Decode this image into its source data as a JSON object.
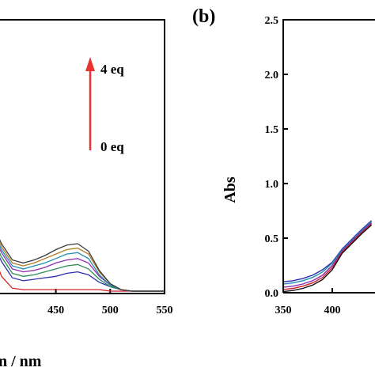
{
  "panel_a": {
    "xlabel_fragment": "n / nm",
    "annotation_top": "4 eq",
    "annotation_bottom": "0 eq",
    "arrow_color": "#e8342f"
  },
  "panel_b": {
    "tag": "(b)",
    "ylabel": "Abs"
  },
  "chart_data": [
    {
      "type": "line",
      "title": "",
      "xlabel": "λ / nm",
      "ylabel": "",
      "xlim": [
        395,
        550
      ],
      "ylim": [
        0,
        2.5
      ],
      "x_ticks": [
        450,
        500,
        550
      ],
      "x_tick_labels": [
        "450",
        "500",
        "550"
      ],
      "legend": "none",
      "annotation": {
        "from": "0 eq",
        "to": "4 eq",
        "direction": "up"
      },
      "x": [
        395,
        400,
        410,
        420,
        430,
        440,
        450,
        460,
        470,
        480,
        490,
        500,
        510,
        520,
        530,
        540,
        550
      ],
      "series": [
        {
          "color": "#d6202a",
          "values": [
            0.2,
            0.1,
            0.02,
            0.01,
            0.01,
            0.01,
            0.01,
            0.01,
            0.01,
            0.01,
            0.01,
            0.0,
            0.0,
            0.0,
            0.0,
            0.0,
            0.0
          ]
        },
        {
          "color": "#2a2fb0",
          "values": [
            0.28,
            0.2,
            0.09,
            0.07,
            0.08,
            0.09,
            0.1,
            0.12,
            0.13,
            0.11,
            0.06,
            0.03,
            0.01,
            0.0,
            0.0,
            0.0,
            0.0
          ]
        },
        {
          "color": "#2e8b57",
          "values": [
            0.31,
            0.23,
            0.12,
            0.1,
            0.11,
            0.13,
            0.15,
            0.17,
            0.18,
            0.15,
            0.08,
            0.03,
            0.01,
            0.0,
            0.0,
            0.0,
            0.0
          ]
        },
        {
          "color": "#8b2fb0",
          "values": [
            0.34,
            0.26,
            0.15,
            0.13,
            0.14,
            0.16,
            0.19,
            0.21,
            0.22,
            0.19,
            0.1,
            0.04,
            0.01,
            0.0,
            0.0,
            0.0,
            0.0
          ]
        },
        {
          "color": "#1f8fb0",
          "values": [
            0.36,
            0.28,
            0.17,
            0.15,
            0.17,
            0.19,
            0.22,
            0.25,
            0.26,
            0.22,
            0.11,
            0.04,
            0.01,
            0.0,
            0.0,
            0.0,
            0.0
          ]
        },
        {
          "color": "#b07d1f",
          "values": [
            0.38,
            0.3,
            0.19,
            0.17,
            0.19,
            0.22,
            0.25,
            0.28,
            0.29,
            0.25,
            0.13,
            0.05,
            0.01,
            0.0,
            0.0,
            0.0,
            0.0
          ]
        },
        {
          "color": "#3a3a3a",
          "values": [
            0.4,
            0.32,
            0.21,
            0.19,
            0.21,
            0.24,
            0.28,
            0.31,
            0.32,
            0.27,
            0.14,
            0.05,
            0.01,
            0.0,
            0.0,
            0.0,
            0.0
          ]
        }
      ]
    },
    {
      "type": "line",
      "title": "",
      "xlabel": "",
      "ylabel": "Abs",
      "xlim": [
        350,
        440
      ],
      "ylim": [
        0.0,
        2.5
      ],
      "x_ticks": [
        350,
        400
      ],
      "x_tick_labels": [
        "350",
        "400"
      ],
      "y_ticks": [
        0.0,
        0.5,
        1.0,
        1.5,
        2.0,
        2.5
      ],
      "y_tick_labels": [
        "0.0",
        "0.5",
        "1.0",
        "1.5",
        "2.0",
        "2.5"
      ],
      "legend": "none",
      "x": [
        350,
        360,
        370,
        380,
        390,
        400,
        410,
        420,
        430,
        440
      ],
      "series": [
        {
          "color": "#2a2fb0",
          "values": [
            0.1,
            0.11,
            0.13,
            0.16,
            0.21,
            0.28,
            0.4,
            0.49,
            0.58,
            0.66
          ]
        },
        {
          "color": "#1f8fb0",
          "values": [
            0.08,
            0.09,
            0.11,
            0.14,
            0.19,
            0.27,
            0.39,
            0.48,
            0.57,
            0.65
          ]
        },
        {
          "color": "#8b2fb0",
          "values": [
            0.05,
            0.06,
            0.08,
            0.11,
            0.16,
            0.25,
            0.38,
            0.47,
            0.56,
            0.64
          ]
        },
        {
          "color": "#d6202a",
          "values": [
            0.03,
            0.04,
            0.06,
            0.09,
            0.14,
            0.23,
            0.37,
            0.46,
            0.55,
            0.63
          ]
        },
        {
          "color": "#111111",
          "values": [
            0.01,
            0.02,
            0.04,
            0.07,
            0.12,
            0.21,
            0.36,
            0.45,
            0.54,
            0.62
          ]
        }
      ]
    }
  ]
}
